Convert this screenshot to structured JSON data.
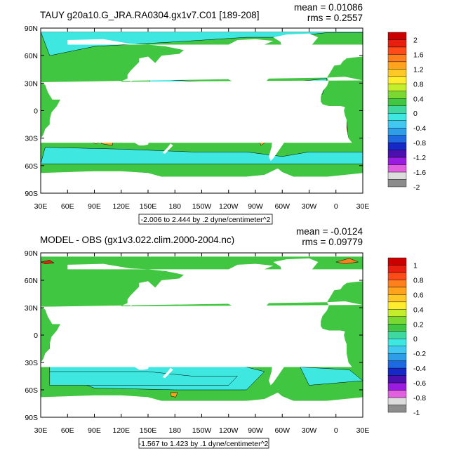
{
  "chart_data": [
    {
      "type": "heatmap",
      "title": "TAUY g20a10.G_JRA.RA0304.gx1v7.C01 [189-208]",
      "stats": {
        "mean": "mean = 0.01086",
        "rms": "rms = 0.2557"
      },
      "range_label": "-2.006 to 2.444 by .2 dyne/centimeter^2",
      "lon_ticks": [
        "30E",
        "60E",
        "90E",
        "120E",
        "150E",
        "180",
        "150W",
        "120W",
        "90W",
        "60W",
        "30W",
        "0",
        "30E"
      ],
      "lat_ticks": [
        "90N",
        "60N",
        "30N",
        "0",
        "30S",
        "60S",
        "90S"
      ],
      "lat_values": [
        90,
        60,
        30,
        0,
        -30,
        -60,
        -90
      ],
      "colorbar": {
        "labels": [
          "2",
          "1.6",
          "1.2",
          "0.8",
          "0.4",
          "0",
          "-0.4",
          "-0.8",
          "-1.2",
          "-1.6",
          "-2"
        ],
        "colors": [
          "#cc0000",
          "#e81e0e",
          "#ff4a1a",
          "#ff7f1c",
          "#ffa21e",
          "#ffc826",
          "#ffec2e",
          "#c4ee2c",
          "#7ad832",
          "#40c640",
          "#3ed8a0",
          "#3ee8e0",
          "#40c8f0",
          "#2e9ee8",
          "#1e68e0",
          "#1628c8",
          "#4c10b0",
          "#9a1ce0",
          "#e060e0",
          "#dcdcdc",
          "#8c8c8c"
        ]
      }
    },
    {
      "type": "heatmap",
      "title": "MODEL - OBS (gx1v3.022.clim.2000-2004.nc)",
      "stats": {
        "mean": "mean = -0.0124",
        "rms": "rms = 0.09779"
      },
      "range_label": "-1.567 to 1.423 by .1 dyne/centimeter^2",
      "lon_ticks": [
        "30E",
        "60E",
        "90E",
        "120E",
        "150E",
        "180",
        "150W",
        "120W",
        "90W",
        "60W",
        "30W",
        "0",
        "30E"
      ],
      "lat_ticks": [
        "90N",
        "60N",
        "30N",
        "0",
        "30S",
        "60S",
        "90S"
      ],
      "lat_values": [
        90,
        60,
        30,
        0,
        -30,
        -60,
        -90
      ],
      "colorbar": {
        "labels": [
          "1",
          "0.8",
          "0.6",
          "0.4",
          "0.2",
          "0",
          "-0.2",
          "-0.4",
          "-0.6",
          "-0.8",
          "-1"
        ],
        "colors": [
          "#cc0000",
          "#e81e0e",
          "#ff4a1a",
          "#ff7f1c",
          "#ffa21e",
          "#ffc826",
          "#ffec2e",
          "#c4ee2c",
          "#7ad832",
          "#40c640",
          "#3ed8a0",
          "#3ee8e0",
          "#40c8f0",
          "#2e9ee8",
          "#1e68e0",
          "#1628c8",
          "#4c10b0",
          "#9a1ce0",
          "#e060e0",
          "#dcdcdc",
          "#8c8c8c"
        ]
      }
    }
  ],
  "palette": {
    "ocean_green": "#40c640",
    "ocean_cyan": "#3ee8e0",
    "ocean_yellow": "#ffec2e",
    "ocean_orange": "#ffa21e",
    "ocean_blue": "#40c8f0",
    "land": "#ffffff",
    "frame": "#000000"
  }
}
